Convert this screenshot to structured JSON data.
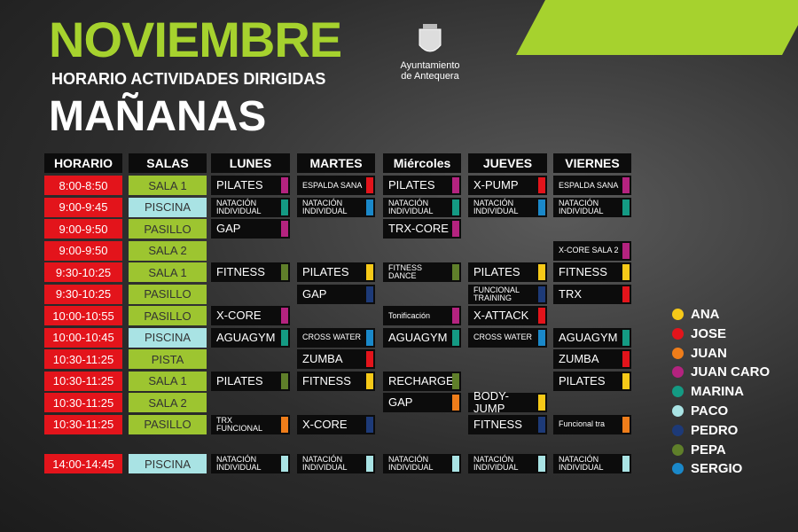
{
  "header": {
    "title": "NOVIEMBRE",
    "subtitle": "HORARIO ACTIVIDADES DIRIGIDAS",
    "session": "MAÑANAS",
    "logo_text": [
      "Ayuntamiento",
      "de Antequera"
    ]
  },
  "table": {
    "headers": [
      "HORARIO",
      "SALAS",
      "LUNES",
      "MARTES",
      "Miércoles",
      "JUEVES",
      "VIERNES"
    ],
    "rows": [
      {
        "time": "8:00-8:50",
        "room": "SALA 1",
        "room_color": "#9dc530",
        "cells": [
          {
            "text": "PILATES",
            "color": "#b4237f"
          },
          {
            "text": "ESPALDA SANA",
            "color": "#e3141b"
          },
          {
            "text": "PILATES",
            "color": "#b4237f"
          },
          {
            "text": "X-PUMP",
            "color": "#e3141b"
          },
          {
            "text": "ESPALDA SANA",
            "color": "#b4237f"
          }
        ]
      },
      {
        "time": "9:00-9:45",
        "room": "PISCINA",
        "room_color": "#a9e3e4",
        "cells": [
          {
            "text": "NATACIÓN INDIVIDUAL",
            "color": "#149a83"
          },
          {
            "text": "NATACIÓN INDIVIDUAL",
            "color": "#1a88c9"
          },
          {
            "text": "NATACIÓN INDIVIDUAL",
            "color": "#149a83"
          },
          {
            "text": "NATACIÓN INDIVIDUAL",
            "color": "#1a88c9"
          },
          {
            "text": "NATACIÓN INDIVIDUAL",
            "color": "#149a83"
          }
        ]
      },
      {
        "time": "9:00-9:50",
        "room": "PASILLO",
        "room_color": "#9dc530",
        "cells": [
          {
            "text": "GAP",
            "color": "#b4237f"
          },
          null,
          {
            "text": "TRX-CORE",
            "color": "#b4237f"
          },
          null,
          null
        ]
      },
      {
        "time": "9:00-9:50",
        "room": "SALA 2",
        "room_color": "#9dc530",
        "cells": [
          null,
          null,
          null,
          null,
          {
            "text": "X-CORE SALA 2",
            "color": "#b4237f"
          }
        ]
      },
      {
        "time": "9:30-10:25",
        "room": "SALA 1",
        "room_color": "#9dc530",
        "cells": [
          {
            "text": "FITNESS",
            "color": "#5f7f2a"
          },
          {
            "text": "PILATES",
            "color": "#f6c918"
          },
          {
            "text": "FITNESS DANCE",
            "color": "#5f7f2a"
          },
          {
            "text": "PILATES",
            "color": "#f6c918"
          },
          {
            "text": "FITNESS",
            "color": "#f6c918"
          }
        ]
      },
      {
        "time": "9:30-10:25",
        "room": "PASILLO",
        "room_color": "#9dc530",
        "cells": [
          null,
          {
            "text": "GAP",
            "color": "#1d3a78"
          },
          null,
          {
            "text": "FUNCIONAL TRAINING",
            "color": "#1d3a78"
          },
          {
            "text": "TRX",
            "color": "#e3141b"
          }
        ]
      },
      {
        "time": "10:00-10:55",
        "room": "PASILLO",
        "room_color": "#9dc530",
        "cells": [
          {
            "text": "X-CORE",
            "color": "#b4237f"
          },
          null,
          {
            "text": "Tonificación",
            "color": "#b4237f"
          },
          {
            "text": "X-ATTACK",
            "color": "#e3141b"
          },
          null
        ]
      },
      {
        "time": "10:00-10:45",
        "room": "PISCINA",
        "room_color": "#a9e3e4",
        "cells": [
          {
            "text": "AGUAGYM",
            "color": "#149a83"
          },
          {
            "text": "CROSS WATER",
            "color": "#1a88c9"
          },
          {
            "text": "AGUAGYM",
            "color": "#149a83"
          },
          {
            "text": "CROSS WATER",
            "color": "#1a88c9"
          },
          {
            "text": "AGUAGYM",
            "color": "#149a83"
          }
        ]
      },
      {
        "time": "10:30-11:25",
        "room": "PISTA",
        "room_color": "#9dc530",
        "cells": [
          null,
          {
            "text": "ZUMBA",
            "color": "#e3141b"
          },
          null,
          null,
          {
            "text": "ZUMBA",
            "color": "#e3141b"
          }
        ]
      },
      {
        "time": "10:30-11:25",
        "room": "SALA 1",
        "room_color": "#9dc530",
        "cells": [
          {
            "text": "PILATES",
            "color": "#5f7f2a"
          },
          {
            "text": "FITNESS",
            "color": "#f6c918"
          },
          {
            "text": "RECHARGE",
            "color": "#5f7f2a"
          },
          null,
          {
            "text": "PILATES",
            "color": "#f6c918"
          }
        ]
      },
      {
        "time": "10:30-11:25",
        "room": "SALA 2",
        "room_color": "#9dc530",
        "cells": [
          null,
          null,
          {
            "text": "GAP",
            "color": "#ef7d1a"
          },
          {
            "text": "BODY-JUMP",
            "color": "#f6c918"
          },
          null
        ]
      },
      {
        "time": "10:30-11:25",
        "room": "PASILLO",
        "room_color": "#9dc530",
        "cells": [
          {
            "text": "TRX FUNCIONAL",
            "color": "#ef7d1a"
          },
          {
            "text": "X-CORE",
            "color": "#1d3a78"
          },
          null,
          {
            "text": "FITNESS",
            "color": "#1d3a78"
          },
          {
            "text": "Funcional tra",
            "color": "#ef7d1a"
          }
        ]
      },
      {
        "time": "14:00-14:45",
        "room": "PISCINA",
        "room_color": "#a9e3e4",
        "cells": [
          {
            "text": "NATACIÓN INDIVIDUAL",
            "color": "#a9e3e4"
          },
          {
            "text": "NATACIÓN INDIVIDUAL",
            "color": "#a9e3e4"
          },
          {
            "text": "NATACIÓN INDIVIDUAL",
            "color": "#a9e3e4"
          },
          {
            "text": "NATACIÓN INDIVIDUAL",
            "color": "#a9e3e4"
          },
          {
            "text": "NATACIÓN INDIVIDUAL",
            "color": "#a9e3e4"
          }
        ]
      }
    ]
  },
  "legend": [
    {
      "name": "ANA",
      "color": "#f6c918"
    },
    {
      "name": "JOSE",
      "color": "#e3141b"
    },
    {
      "name": "JUAN",
      "color": "#ef7d1a"
    },
    {
      "name": "JUAN CARO",
      "color": "#b4237f"
    },
    {
      "name": "MARINA",
      "color": "#149a83"
    },
    {
      "name": "PACO",
      "color": "#a9e3e4"
    },
    {
      "name": "PEDRO",
      "color": "#1d3a78"
    },
    {
      "name": "PEPA",
      "color": "#5f7f2a"
    },
    {
      "name": "SERGIO",
      "color": "#1a88c9"
    }
  ]
}
